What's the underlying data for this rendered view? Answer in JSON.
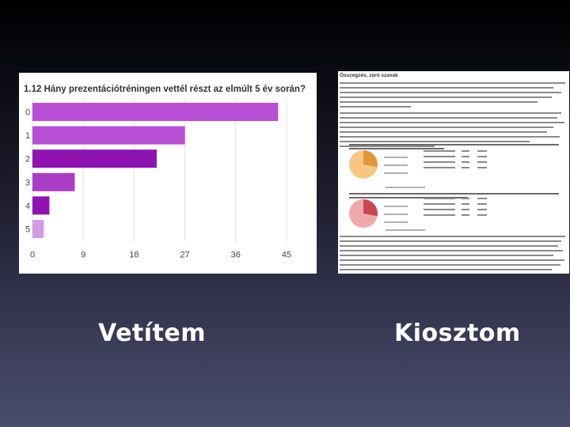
{
  "slide": {
    "left_caption": "Vetítem",
    "right_caption": "Kiosztom"
  },
  "chart_data": {
    "type": "bar",
    "orientation": "horizontal",
    "title": "1.12 Hány prezentációtréningen vettél részt az elmúlt 5 év során?",
    "categories": [
      "0",
      "1",
      "2",
      "3",
      "4",
      "5"
    ],
    "values": [
      43.5,
      27,
      22,
      7.5,
      3,
      2
    ],
    "xticks": [
      0,
      9,
      18,
      27,
      36,
      45
    ],
    "xlim": [
      0,
      45
    ],
    "colors": [
      "#b94fd6",
      "#b94fd6",
      "#8e13b0",
      "#aa3cc6",
      "#8e13b0",
      "#d59ae4"
    ],
    "grid": true
  },
  "handout": {
    "title": "Összegzés, záró szavak",
    "accent_colors": [
      "#f7c680",
      "#e2963a",
      "#f0a9ab",
      "#c9474f"
    ]
  }
}
